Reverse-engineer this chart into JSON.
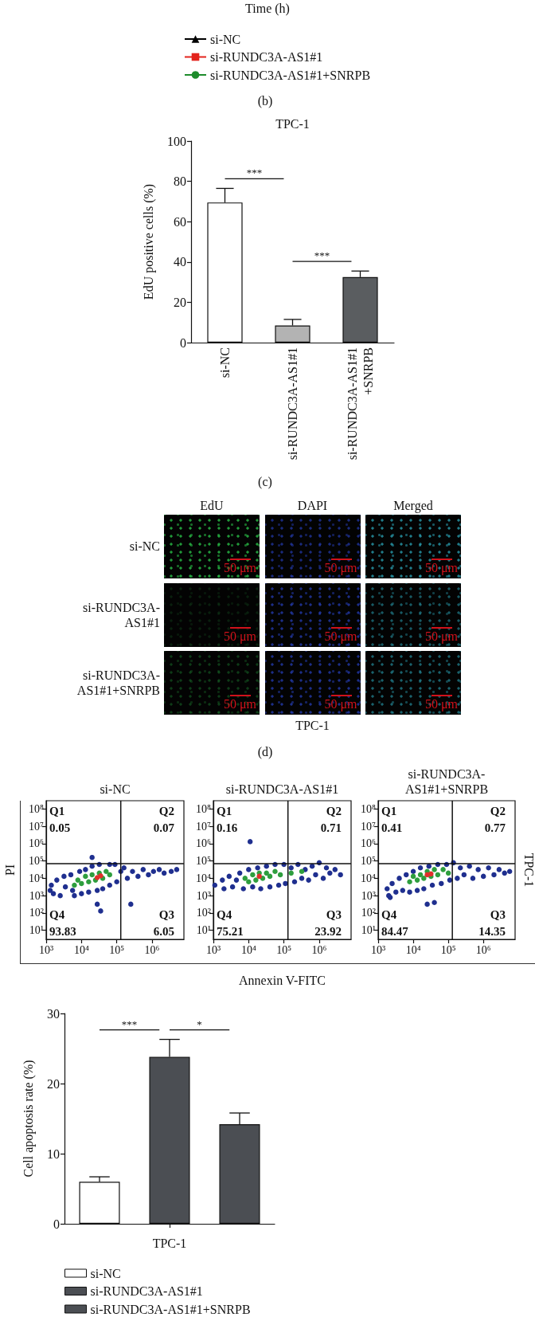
{
  "chart_data": [
    {
      "type": "other",
      "xlabel": "Time (h)",
      "legend": "bottom",
      "series": [
        {
          "name": "si-NC",
          "color": "#000000",
          "marker": "triangle"
        },
        {
          "name": "si-RUNDC3A-AS1#1",
          "color": "#e3231c",
          "marker": "square"
        },
        {
          "name": "si-RUNDC3A-AS1#1+SNRPB",
          "color": "#1e8c2c",
          "marker": "circle"
        }
      ],
      "annotations": [
        "(b)"
      ]
    },
    {
      "type": "bar",
      "title": "TPC-1",
      "ylabel": "EdU positive cells (%)",
      "categories": [
        "si-NC",
        "si-RUNDC3A-AS1#1",
        "si-RUNDC3A-AS1#1\n+SNRPB"
      ],
      "values": [
        69.5,
        8.5,
        32.5
      ],
      "colors": [
        "#ffffff",
        "#b3b3b3",
        "#5a5d60"
      ],
      "errors": [
        [
          69.5,
          76.5
        ],
        [
          8.5,
          11.5
        ],
        [
          32.5,
          35.5
        ]
      ],
      "ylim": [
        0,
        100
      ],
      "yticks": [
        0,
        20,
        40,
        60,
        80,
        100
      ],
      "annotations": [
        "***",
        "***",
        "(c)"
      ]
    },
    {
      "type": "other",
      "categories": [
        "EdU",
        "DAPI",
        "Merged"
      ],
      "y_categories": [
        "si-NC",
        "si-RUNDC3A-AS1#1",
        "si-RUNDC3A-AS1#1+SNRPB"
      ],
      "xlabel": "TPC-1",
      "annotations": [
        "50 μm",
        "50 μm",
        "50 μm",
        "50 μm",
        "50 μm",
        "50 μm",
        "50 μm",
        "50 μm",
        "50 μm",
        "(d)"
      ]
    },
    {
      "type": "scatter",
      "title": "si-NC",
      "ylabel": "PI",
      "log": "xy",
      "marker": "circle",
      "xlim": [
        1000,
        8000000
      ],
      "ylim": [
        3,
        300000000
      ],
      "xticks": [
        {
          "value": 1000,
          "label": "10³"
        },
        {
          "value": 10000,
          "label": "10⁴"
        },
        {
          "value": 100000,
          "label": "10⁵"
        },
        {
          "value": 1000000,
          "label": "10⁶"
        }
      ],
      "yticks": [
        {
          "value": 10,
          "label": "10¹"
        },
        {
          "value": 100,
          "label": "10²"
        },
        {
          "value": 1000,
          "label": "10³"
        },
        {
          "value": 10000,
          "label": "10⁴"
        },
        {
          "value": 100000,
          "label": "10⁵"
        },
        {
          "value": 1000000,
          "label": "10⁶"
        },
        {
          "value": 10000000,
          "label": "10⁷"
        },
        {
          "value": 100000000,
          "label": "10⁸"
        }
      ],
      "ref_lines": [
        {
          "axis": "x",
          "value": 130000
        },
        {
          "axis": "y",
          "value": 70000
        }
      ],
      "series": [
        {
          "color": "#1f2f8f",
          "x": [
            1300,
            1400,
            1600,
            2000,
            2500,
            3200,
            3500,
            5000,
            5600,
            6300,
            8900,
            10000,
            13000,
            16000,
            20000,
            28000,
            32000,
            40000,
            63000,
            63000,
            89000,
            100000,
            130000,
            160000,
            200000,
            280000,
            400000,
            560000,
            790000,
            1100000,
            1600000,
            2200000,
            3500000,
            5000000,
            20000,
            28000,
            35000,
            250000
          ],
          "values": [
            2000,
            4000,
            1300,
            7900,
            1000,
            13000,
            3200,
            16000,
            2000,
            1000,
            25000,
            1300,
            32000,
            1600,
            50000,
            2000,
            63000,
            2500,
            63000,
            4000,
            63000,
            6300,
            25000,
            40000,
            10000,
            25000,
            13000,
            32000,
            16000,
            25000,
            32000,
            20000,
            25000,
            32000,
            160000,
            320,
            130,
            320
          ]
        },
        {
          "color": "#2e9e3e",
          "x": [
            6300,
            7900,
            10000,
            13000,
            16000,
            20000,
            25000,
            32000,
            40000,
            50000,
            63000
          ],
          "values": [
            4000,
            7900,
            5000,
            13000,
            6300,
            16000,
            7900,
            20000,
            10000,
            25000,
            16000
          ]
        },
        {
          "color": "#e0302a",
          "x": [
            28000,
            35000
          ],
          "values": [
            11000,
            14000
          ]
        }
      ],
      "annotations": [
        "Q1",
        "0.05",
        "Q2",
        "0.07",
        "Q4",
        "93.83",
        "Q3",
        "6.05"
      ]
    },
    {
      "type": "scatter",
      "title": "si-RUNDC3A-AS1#1",
      "xlabel": "Annexin V-FITC",
      "log": "xy",
      "marker": "circle",
      "xlim": [
        1000,
        8000000
      ],
      "ylim": [
        3,
        300000000
      ],
      "xticks": [
        {
          "value": 1000,
          "label": "10³"
        },
        {
          "value": 10000,
          "label": "10⁴"
        },
        {
          "value": 100000,
          "label": "10⁵"
        },
        {
          "value": 1000000,
          "label": "10⁶"
        }
      ],
      "yticks": [
        {
          "value": 10,
          "label": "10¹"
        },
        {
          "value": 100,
          "label": "10²"
        },
        {
          "value": 1000,
          "label": "10³"
        },
        {
          "value": 10000,
          "label": "10⁴"
        },
        {
          "value": 100000,
          "label": "10⁵"
        },
        {
          "value": 1000000,
          "label": "10⁶"
        },
        {
          "value": 10000000,
          "label": "10⁷"
        },
        {
          "value": 100000000,
          "label": "10⁸"
        }
      ],
      "ref_lines": [
        {
          "axis": "x",
          "value": 130000
        },
        {
          "axis": "y",
          "value": 70000
        }
      ],
      "series": [
        {
          "color": "#1f2f8f",
          "x": [
            1100,
            1800,
            2000,
            2800,
            3500,
            4500,
            5600,
            7100,
            10000,
            11000,
            13000,
            18000,
            22000,
            32000,
            40000,
            56000,
            71000,
            100000,
            110000,
            160000,
            200000,
            250000,
            320000,
            400000,
            500000,
            630000,
            790000,
            1000000,
            1300000,
            1600000,
            2000000,
            2800000,
            4000000
          ],
          "values": [
            4000,
            7900,
            2500,
            13000,
            3200,
            7900,
            20000,
            2500,
            32000,
            1300000,
            3200,
            40000,
            2500,
            50000,
            3200,
            63000,
            4000,
            63000,
            5000,
            40000,
            6300,
            63000,
            10000,
            32000,
            7900,
            50000,
            16000,
            79000,
            10000,
            40000,
            20000,
            32000,
            16000
          ]
        },
        {
          "color": "#2e9e3e",
          "x": [
            7900,
            10000,
            13000,
            16000,
            20000,
            25000,
            32000,
            40000,
            56000,
            79000,
            160000,
            320000
          ],
          "values": [
            10000,
            6300,
            16000,
            7900,
            20000,
            10000,
            20000,
            13000,
            25000,
            16000,
            20000,
            25000
          ]
        },
        {
          "color": "#e0302a",
          "x": [
            20000
          ],
          "values": [
            13000
          ]
        }
      ],
      "annotations": [
        "Q1",
        "0.16",
        "Q2",
        "0.71",
        "Q4",
        "75.21",
        "Q3",
        "23.92"
      ]
    },
    {
      "type": "scatter",
      "title": "si-RUNDC3A-AS1#1+SNRPB",
      "y2label": "TPC-1",
      "log": "xy",
      "marker": "circle",
      "xlim": [
        1000,
        8000000
      ],
      "ylim": [
        3,
        300000000
      ],
      "xticks": [
        {
          "value": 1000,
          "label": "10³"
        },
        {
          "value": 10000,
          "label": "10⁴"
        },
        {
          "value": 100000,
          "label": "10⁵"
        },
        {
          "value": 1000000,
          "label": "10⁶"
        }
      ],
      "yticks": [
        {
          "value": 10,
          "label": "10¹"
        },
        {
          "value": 100,
          "label": "10²"
        },
        {
          "value": 1000,
          "label": "10³"
        },
        {
          "value": 10000,
          "label": "10⁴"
        },
        {
          "value": 100000,
          "label": "10⁵"
        },
        {
          "value": 1000000,
          "label": "10⁶"
        },
        {
          "value": 10000000,
          "label": "10⁷"
        },
        {
          "value": 100000000,
          "label": "10⁸"
        }
      ],
      "ref_lines": [
        {
          "axis": "x",
          "value": 130000
        },
        {
          "axis": "y",
          "value": 70000
        }
      ],
      "series": [
        {
          "color": "#1f2f8f",
          "x": [
            1800,
            2000,
            2500,
            3200,
            4000,
            5000,
            6300,
            7900,
            10000,
            13000,
            16000,
            20000,
            28000,
            35000,
            50000,
            63000,
            89000,
            110000,
            140000,
            180000,
            220000,
            280000,
            400000,
            500000,
            710000,
            1000000,
            1400000,
            2000000,
            2800000,
            4000000,
            5600000,
            25000,
            40000,
            2200
          ],
          "values": [
            2500,
            1000,
            5000,
            1600,
            10000,
            2000,
            16000,
            1600,
            25000,
            2000,
            40000,
            2500,
            50000,
            4000,
            63000,
            5000,
            63000,
            7900,
            79000,
            10000,
            40000,
            16000,
            50000,
            10000,
            32000,
            13000,
            40000,
            16000,
            32000,
            20000,
            25000,
            320,
            400,
            790
          ]
        },
        {
          "color": "#2e9e3e",
          "x": [
            7900,
            10000,
            13000,
            16000,
            20000,
            25000,
            32000,
            40000,
            50000,
            71000,
            100000
          ],
          "values": [
            6300,
            13000,
            7900,
            16000,
            10000,
            25000,
            13000,
            32000,
            16000,
            32000,
            20000
          ]
        },
        {
          "color": "#e0302a",
          "x": [
            25000,
            32000
          ],
          "values": [
            16000,
            18000
          ]
        }
      ],
      "annotations": [
        "Q1",
        "0.41",
        "Q2",
        "0.77",
        "Q4",
        "84.47",
        "Q3",
        "14.35"
      ]
    },
    {
      "type": "bar",
      "ylabel": "Cell apoptosis rate (%)",
      "categories": [
        null,
        "TPC-1",
        null
      ],
      "stacked": true,
      "series": [
        {
          "name": "si-NC",
          "color": "#ffffff",
          "values": [
            6,
            null,
            null
          ],
          "errors": [
            [
              6,
              6.7
            ],
            null,
            null
          ]
        },
        {
          "name": "si-RUNDC3A-AS1#1",
          "color": "#4b4e53",
          "values": [
            null,
            23.8,
            null
          ],
          "errors": [
            null,
            [
              23.8,
              26.3
            ],
            null
          ]
        },
        {
          "name": "si-RUNDC3A-AS1#1+SNRPB",
          "color": "#4b4e53",
          "values": [
            null,
            null,
            14.2
          ],
          "errors": [
            null,
            null,
            [
              14.2,
              15.8
            ]
          ]
        }
      ],
      "ylim": [
        0,
        30
      ],
      "yticks": [
        0,
        10,
        20,
        30
      ],
      "legend": "bottom",
      "annotations": [
        "***",
        "*"
      ]
    }
  ]
}
